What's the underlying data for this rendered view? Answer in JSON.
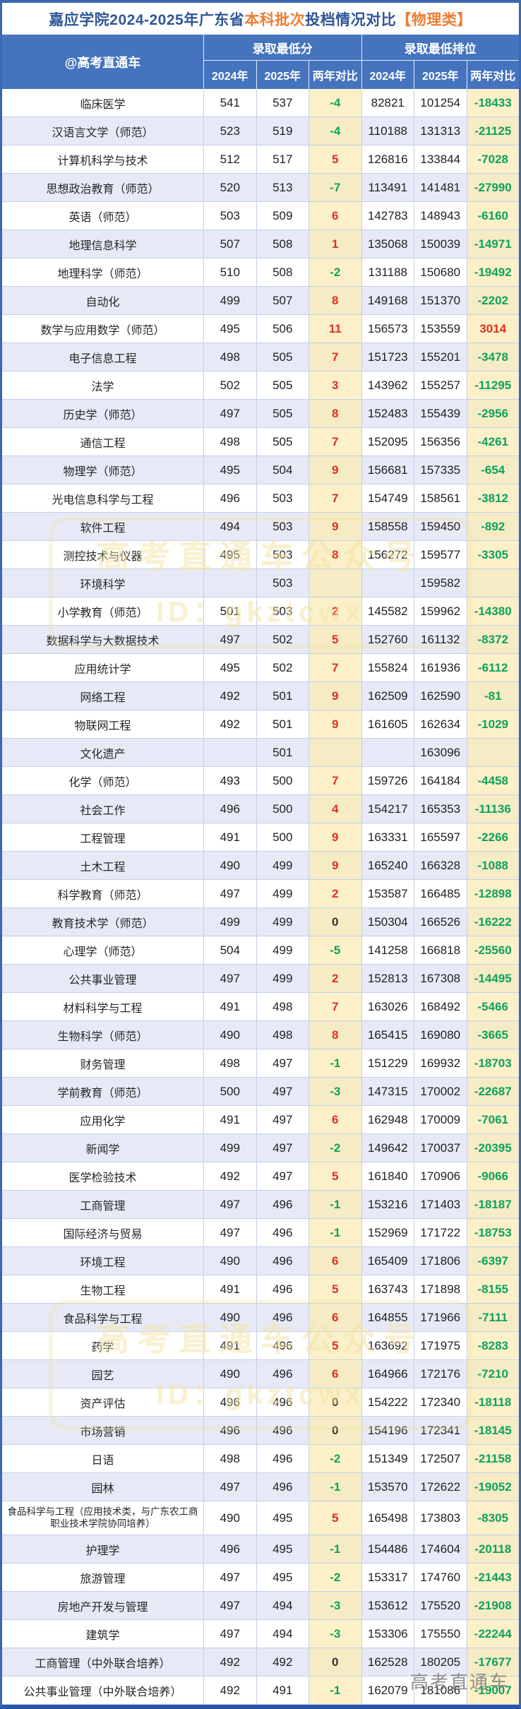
{
  "title": {
    "part1": "嘉应学院2024-2025年广东省",
    "part2": "本科批次",
    "part3": "投档情况对比",
    "part4": "【物理类】"
  },
  "header": {
    "owner": "@高考直通车",
    "group_score": "录取最低分",
    "group_rank": "录取最低排位",
    "col_2024": "2024年",
    "col_2025": "2025年",
    "col_diff": "两年对比"
  },
  "colors": {
    "negative": "#0FA25B",
    "positive": "#E02E23",
    "zero": "#333333",
    "head_bg": "#4573BE",
    "row_alt": "#E7EAF6",
    "diff_bg": "#FBF0C8",
    "diff_bg_alt": "#F5ECC6",
    "grid": "#C3CFE9",
    "title_blue": "#2F5597",
    "title_orange": "#ED7D31",
    "outer": "#3A68B2",
    "outer_dark": "#2B55A5"
  },
  "watermark": {
    "line1": "高考直通车公众号",
    "line2": "ID：gkztcwx",
    "footer": "高考直通车"
  },
  "rows": [
    {
      "name": "临床医学",
      "s24": "541",
      "s25": "537",
      "sd": "-4",
      "r24": "82821",
      "r25": "101254",
      "rd": "-18433"
    },
    {
      "name": "汉语言文学（师范）",
      "s24": "523",
      "s25": "519",
      "sd": "-4",
      "r24": "110188",
      "r25": "131313",
      "rd": "-21125"
    },
    {
      "name": "计算机科学与技术",
      "s24": "512",
      "s25": "517",
      "sd": "5",
      "r24": "126816",
      "r25": "133844",
      "rd": "-7028"
    },
    {
      "name": "思想政治教育（师范）",
      "s24": "520",
      "s25": "513",
      "sd": "-7",
      "r24": "113491",
      "r25": "141481",
      "rd": "-27990"
    },
    {
      "name": "英语（师范）",
      "s24": "503",
      "s25": "509",
      "sd": "6",
      "r24": "142783",
      "r25": "148943",
      "rd": "-6160"
    },
    {
      "name": "地理信息科学",
      "s24": "507",
      "s25": "508",
      "sd": "1",
      "r24": "135068",
      "r25": "150039",
      "rd": "-14971"
    },
    {
      "name": "地理科学（师范）",
      "s24": "510",
      "s25": "508",
      "sd": "-2",
      "r24": "131188",
      "r25": "150680",
      "rd": "-19492"
    },
    {
      "name": "自动化",
      "s24": "499",
      "s25": "507",
      "sd": "8",
      "r24": "149168",
      "r25": "151370",
      "rd": "-2202"
    },
    {
      "name": "数学与应用数学（师范）",
      "s24": "495",
      "s25": "506",
      "sd": "11",
      "r24": "156573",
      "r25": "153559",
      "rd": "3014"
    },
    {
      "name": "电子信息工程",
      "s24": "498",
      "s25": "505",
      "sd": "7",
      "r24": "151723",
      "r25": "155201",
      "rd": "-3478"
    },
    {
      "name": "法学",
      "s24": "502",
      "s25": "505",
      "sd": "3",
      "r24": "143962",
      "r25": "155257",
      "rd": "-11295"
    },
    {
      "name": "历史学（师范）",
      "s24": "497",
      "s25": "505",
      "sd": "8",
      "r24": "152483",
      "r25": "155439",
      "rd": "-2956"
    },
    {
      "name": "通信工程",
      "s24": "498",
      "s25": "505",
      "sd": "7",
      "r24": "152095",
      "r25": "156356",
      "rd": "-4261"
    },
    {
      "name": "物理学（师范）",
      "s24": "495",
      "s25": "504",
      "sd": "9",
      "r24": "156681",
      "r25": "157335",
      "rd": "-654"
    },
    {
      "name": "光电信息科学与工程",
      "s24": "496",
      "s25": "503",
      "sd": "7",
      "r24": "154749",
      "r25": "158561",
      "rd": "-3812"
    },
    {
      "name": "软件工程",
      "s24": "494",
      "s25": "503",
      "sd": "9",
      "r24": "158558",
      "r25": "159450",
      "rd": "-892"
    },
    {
      "name": "测控技术与仪器",
      "s24": "495",
      "s25": "503",
      "sd": "8",
      "r24": "156272",
      "r25": "159577",
      "rd": "-3305"
    },
    {
      "name": "环境科学",
      "s24": "",
      "s25": "503",
      "sd": "",
      "r24": "",
      "r25": "159582",
      "rd": ""
    },
    {
      "name": "小学教育（师范）",
      "s24": "501",
      "s25": "503",
      "sd": "2",
      "r24": "145582",
      "r25": "159962",
      "rd": "-14380"
    },
    {
      "name": "数据科学与大数据技术",
      "s24": "497",
      "s25": "502",
      "sd": "5",
      "r24": "152760",
      "r25": "161132",
      "rd": "-8372"
    },
    {
      "name": "应用统计学",
      "s24": "495",
      "s25": "502",
      "sd": "7",
      "r24": "155824",
      "r25": "161936",
      "rd": "-6112"
    },
    {
      "name": "网络工程",
      "s24": "492",
      "s25": "501",
      "sd": "9",
      "r24": "162509",
      "r25": "162590",
      "rd": "-81"
    },
    {
      "name": "物联网工程",
      "s24": "492",
      "s25": "501",
      "sd": "9",
      "r24": "161605",
      "r25": "162634",
      "rd": "-1029"
    },
    {
      "name": "文化遗产",
      "s24": "",
      "s25": "501",
      "sd": "",
      "r24": "",
      "r25": "163096",
      "rd": ""
    },
    {
      "name": "化学（师范）",
      "s24": "493",
      "s25": "500",
      "sd": "7",
      "r24": "159726",
      "r25": "164184",
      "rd": "-4458"
    },
    {
      "name": "社会工作",
      "s24": "496",
      "s25": "500",
      "sd": "4",
      "r24": "154217",
      "r25": "165353",
      "rd": "-11136"
    },
    {
      "name": "工程管理",
      "s24": "491",
      "s25": "500",
      "sd": "9",
      "r24": "163331",
      "r25": "165597",
      "rd": "-2266"
    },
    {
      "name": "土木工程",
      "s24": "490",
      "s25": "499",
      "sd": "9",
      "r24": "165240",
      "r25": "166328",
      "rd": "-1088"
    },
    {
      "name": "科学教育（师范）",
      "s24": "497",
      "s25": "499",
      "sd": "2",
      "r24": "153587",
      "r25": "166485",
      "rd": "-12898"
    },
    {
      "name": "教育技术学（师范）",
      "s24": "499",
      "s25": "499",
      "sd": "0",
      "r24": "150304",
      "r25": "166526",
      "rd": "-16222"
    },
    {
      "name": "心理学（师范）",
      "s24": "504",
      "s25": "499",
      "sd": "-5",
      "r24": "141258",
      "r25": "166818",
      "rd": "-25560"
    },
    {
      "name": "公共事业管理",
      "s24": "497",
      "s25": "499",
      "sd": "2",
      "r24": "152813",
      "r25": "167308",
      "rd": "-14495"
    },
    {
      "name": "材料科学与工程",
      "s24": "491",
      "s25": "498",
      "sd": "7",
      "r24": "163026",
      "r25": "168492",
      "rd": "-5466"
    },
    {
      "name": "生物科学（师范）",
      "s24": "490",
      "s25": "498",
      "sd": "8",
      "r24": "165415",
      "r25": "169080",
      "rd": "-3665"
    },
    {
      "name": "财务管理",
      "s24": "498",
      "s25": "497",
      "sd": "-1",
      "r24": "151229",
      "r25": "169932",
      "rd": "-18703"
    },
    {
      "name": "学前教育（师范）",
      "s24": "500",
      "s25": "497",
      "sd": "-3",
      "r24": "147315",
      "r25": "170002",
      "rd": "-22687"
    },
    {
      "name": "应用化学",
      "s24": "491",
      "s25": "497",
      "sd": "6",
      "r24": "162948",
      "r25": "170009",
      "rd": "-7061"
    },
    {
      "name": "新闻学",
      "s24": "499",
      "s25": "497",
      "sd": "-2",
      "r24": "149642",
      "r25": "170037",
      "rd": "-20395"
    },
    {
      "name": "医学检验技术",
      "s24": "492",
      "s25": "497",
      "sd": "5",
      "r24": "161840",
      "r25": "170906",
      "rd": "-9066"
    },
    {
      "name": "工商管理",
      "s24": "497",
      "s25": "496",
      "sd": "-1",
      "r24": "153216",
      "r25": "171403",
      "rd": "-18187"
    },
    {
      "name": "国际经济与贸易",
      "s24": "497",
      "s25": "496",
      "sd": "-1",
      "r24": "152969",
      "r25": "171722",
      "rd": "-18753"
    },
    {
      "name": "环境工程",
      "s24": "490",
      "s25": "496",
      "sd": "6",
      "r24": "165409",
      "r25": "171806",
      "rd": "-6397"
    },
    {
      "name": "生物工程",
      "s24": "491",
      "s25": "496",
      "sd": "5",
      "r24": "163743",
      "r25": "171898",
      "rd": "-8155"
    },
    {
      "name": "食品科学与工程",
      "s24": "490",
      "s25": "496",
      "sd": "6",
      "r24": "164855",
      "r25": "171966",
      "rd": "-7111"
    },
    {
      "name": "药学",
      "s24": "491",
      "s25": "496",
      "sd": "5",
      "r24": "163692",
      "r25": "171975",
      "rd": "-8283"
    },
    {
      "name": "园艺",
      "s24": "490",
      "s25": "496",
      "sd": "6",
      "r24": "164966",
      "r25": "172176",
      "rd": "-7210"
    },
    {
      "name": "资产评估",
      "s24": "496",
      "s25": "496",
      "sd": "0",
      "r24": "154222",
      "r25": "172340",
      "rd": "-18118"
    },
    {
      "name": "市场营销",
      "s24": "496",
      "s25": "496",
      "sd": "0",
      "r24": "154196",
      "r25": "172341",
      "rd": "-18145"
    },
    {
      "name": "日语",
      "s24": "498",
      "s25": "496",
      "sd": "-2",
      "r24": "151349",
      "r25": "172507",
      "rd": "-21158"
    },
    {
      "name": "园林",
      "s24": "497",
      "s25": "496",
      "sd": "-1",
      "r24": "153570",
      "r25": "172622",
      "rd": "-19052"
    },
    {
      "name": "食品科学与工程（应用技术类，与广东农工商职业技术学院协同培养）",
      "s24": "490",
      "s25": "495",
      "sd": "5",
      "r24": "165498",
      "r25": "173803",
      "rd": "-8305",
      "tall": true
    },
    {
      "name": "护理学",
      "s24": "496",
      "s25": "495",
      "sd": "-1",
      "r24": "154486",
      "r25": "174604",
      "rd": "-20118"
    },
    {
      "name": "旅游管理",
      "s24": "497",
      "s25": "495",
      "sd": "-2",
      "r24": "153317",
      "r25": "174760",
      "rd": "-21443"
    },
    {
      "name": "房地产开发与管理",
      "s24": "497",
      "s25": "494",
      "sd": "-3",
      "r24": "153612",
      "r25": "175520",
      "rd": "-21908"
    },
    {
      "name": "建筑学",
      "s24": "497",
      "s25": "494",
      "sd": "-3",
      "r24": "153306",
      "r25": "175550",
      "rd": "-22244"
    },
    {
      "name": "工商管理（中外联合培养）",
      "s24": "492",
      "s25": "492",
      "sd": "0",
      "r24": "162528",
      "r25": "180205",
      "rd": "-17677"
    },
    {
      "name": "公共事业管理（中外联合培养）",
      "s24": "492",
      "s25": "491",
      "sd": "-1",
      "r24": "162079",
      "r25": "181086",
      "rd": "-19007"
    }
  ]
}
